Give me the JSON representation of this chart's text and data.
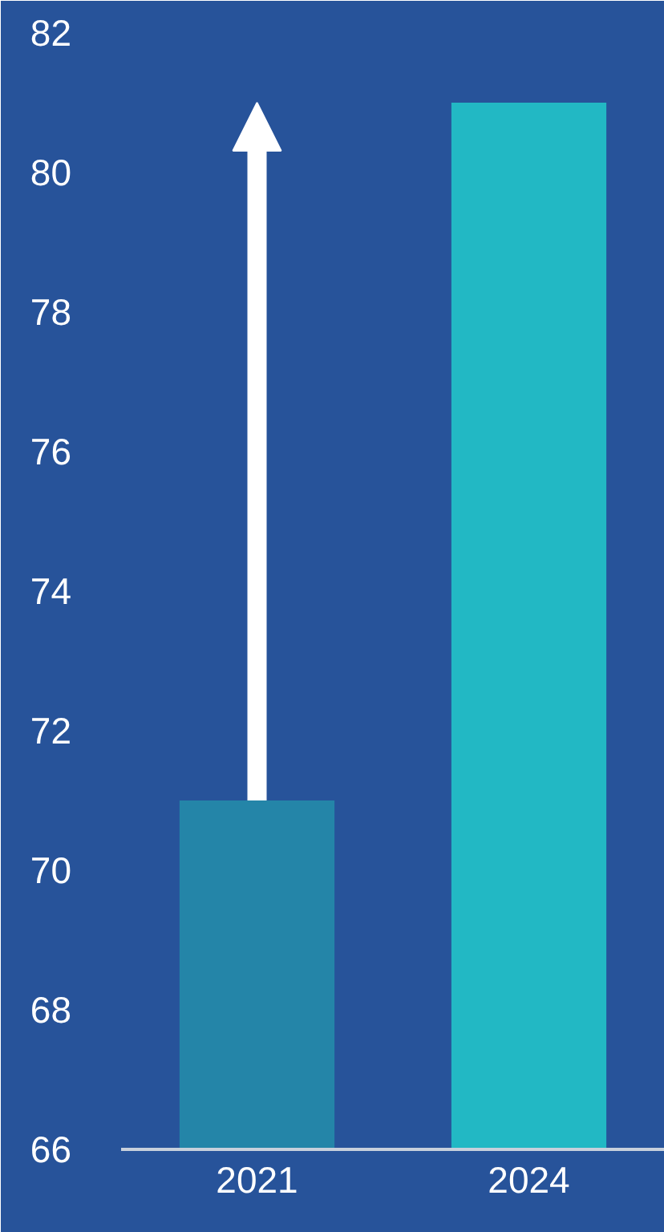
{
  "chart_data": {
    "type": "bar",
    "categories": [
      "2021",
      "2024"
    ],
    "values": [
      71,
      81
    ],
    "colors": [
      "#2485a8",
      "#22b8c4"
    ],
    "ylim": [
      66,
      82
    ],
    "yticks": [
      66,
      68,
      70,
      72,
      74,
      76,
      78,
      80,
      82
    ],
    "grid": false
  }
}
